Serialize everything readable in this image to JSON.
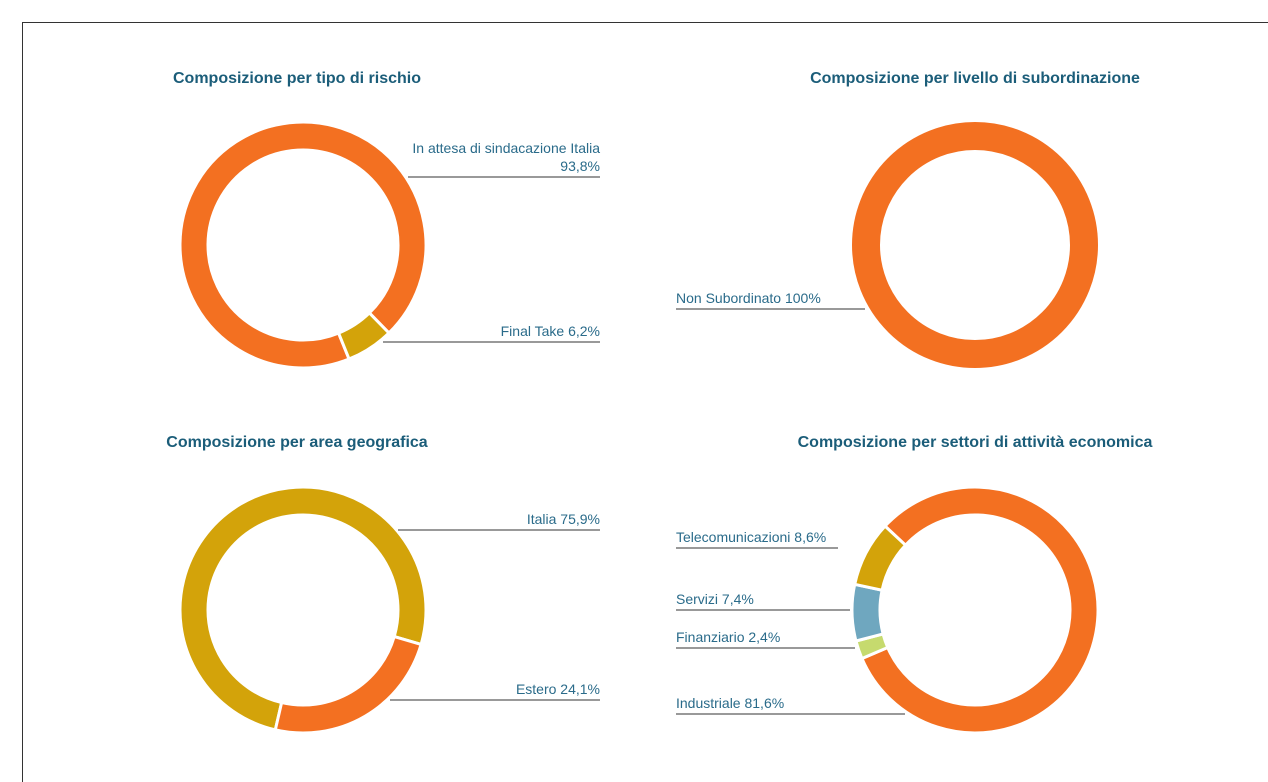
{
  "chart_data": [
    {
      "type": "donut",
      "title": "Composizione per tipo di rischio",
      "categories": [
        "In attesa di sindacazione Italia",
        "Final Take"
      ],
      "values": [
        93.8,
        6.2
      ],
      "value_labels": [
        "93,8%",
        "6,2%"
      ],
      "colors": [
        "#f37021",
        "#d3a30a"
      ]
    },
    {
      "type": "donut",
      "title": "Composizione per livello di subordinazione",
      "categories": [
        "Non Subordinato"
      ],
      "values": [
        100
      ],
      "value_labels": [
        "100%"
      ],
      "colors": [
        "#f37021"
      ]
    },
    {
      "type": "donut",
      "title": "Composizione per area geografica",
      "categories": [
        "Italia",
        "Estero"
      ],
      "values": [
        75.9,
        24.1
      ],
      "value_labels": [
        "75,9%",
        "24,1%"
      ],
      "colors": [
        "#d3a30a",
        "#f37021"
      ]
    },
    {
      "type": "donut",
      "title": "Composizione per settori di attività economica",
      "categories": [
        "Industriale",
        "Finanziario",
        "Servizi",
        "Telecomunicazioni"
      ],
      "values": [
        81.6,
        2.4,
        7.4,
        8.6
      ],
      "value_labels": [
        "81,6%",
        "2,4%",
        "7,4%",
        "8,6%"
      ],
      "colors": [
        "#f37021",
        "#c6da6e",
        "#6fa7bf",
        "#d3a30a"
      ]
    }
  ]
}
